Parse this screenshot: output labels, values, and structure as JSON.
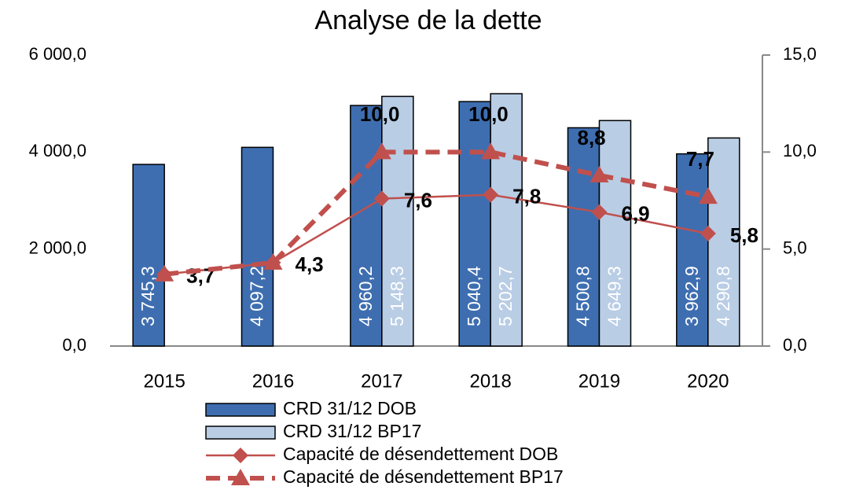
{
  "chart_data": {
    "type": "bar",
    "title": "Analyse de la dette",
    "categories": [
      "2015",
      "2016",
      "2017",
      "2018",
      "2019",
      "2020"
    ],
    "ylim": [
      0,
      6000
    ],
    "yticks": [
      {
        "value": 0,
        "label": "0,0"
      },
      {
        "value": 2000,
        "label": "2 000,0"
      },
      {
        "value": 4000,
        "label": "4 000,0"
      },
      {
        "value": 6000,
        "label": "6 000,0"
      }
    ],
    "y2lim": [
      0,
      15
    ],
    "y2ticks": [
      {
        "value": 0,
        "label": "0,0"
      },
      {
        "value": 5,
        "label": "5,0"
      },
      {
        "value": 10,
        "label": "10,0"
      },
      {
        "value": 15,
        "label": "15,0"
      }
    ],
    "series": [
      {
        "name": "CRD 31/12 DOB",
        "type": "bar",
        "color": "#3e6eb0",
        "values": [
          3745.3,
          4097.2,
          4960.2,
          5040.4,
          4500.8,
          3962.9
        ],
        "value_labels": [
          "3 745,3",
          "4 097,2",
          "4 960,2",
          "5 040,4",
          "4 500,8",
          "3 962,9"
        ]
      },
      {
        "name": "CRD 31/12 BP17",
        "type": "bar",
        "color": "#b9cde5",
        "values": [
          null,
          null,
          5148.3,
          5202.7,
          4649.3,
          4290.8
        ],
        "value_labels": [
          null,
          null,
          "5 148,3",
          "5 202,7",
          "4 649,3",
          "4 290,8"
        ]
      },
      {
        "name": "Capacité de désendettement DOB",
        "type": "line",
        "color": "#c0504d",
        "axis": "y2",
        "marker": "diamond",
        "dash": false,
        "values": [
          3.7,
          4.3,
          7.6,
          7.8,
          6.9,
          5.8
        ],
        "value_labels": [
          "3,7",
          "4,3",
          "7,6",
          "7,8",
          "6,9",
          "5,8"
        ]
      },
      {
        "name": "Capacité de désendettement BP17",
        "type": "line",
        "color": "#c0504d",
        "axis": "y2",
        "marker": "triangle",
        "dash": true,
        "values": [
          3.7,
          4.3,
          10.0,
          10.0,
          8.8,
          7.7
        ],
        "value_labels": [
          null,
          null,
          "10,0",
          "10,0",
          "8,8",
          "7,7"
        ]
      }
    ]
  }
}
